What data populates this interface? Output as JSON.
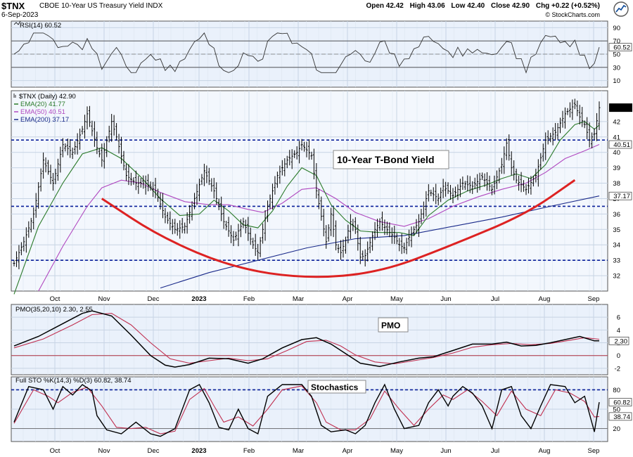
{
  "header": {
    "symbol": "$TNX",
    "description": "CBOE 10-Year US Treasury Yield  INDX",
    "date": "6-Sep-2023",
    "open_label": "Open 42.42",
    "high_label": "High 43.06",
    "low_label": "Low 42.40",
    "close_label": "Close 42.90",
    "chg_label": "Chg +0.22 (+0.52%)",
    "credit": "© StockCharts.com"
  },
  "colors": {
    "price_bars": "#000000",
    "ema20": "#2a7a2a",
    "ema50": "#b048c0",
    "ema200": "#1a2a8a",
    "rounded_bottom": "#dd2222",
    "pmo_signal": "#c03050",
    "stoch_d": "#c03050",
    "blue_dashed": "#0a1f9a",
    "grid": "#c7d4e4",
    "panel_bg": "#eaf1fb"
  },
  "chart_data": [
    {
      "panel": "rsi",
      "type": "line",
      "title": "RSI(14) 60.52",
      "ylim": [
        0,
        100
      ],
      "yticks": [
        10,
        30,
        50,
        70,
        90
      ],
      "reference_lines": [
        30,
        70
      ],
      "marker_label": "60.52",
      "last": 60.52
    },
    {
      "panel": "price",
      "type": "ohlc",
      "title": "$TNX (Daily) 42.90",
      "legend": [
        {
          "label": "EMA(20) 41.77",
          "color": "#2a7a2a"
        },
        {
          "label": "EMA(50) 40.51",
          "color": "#b048c0"
        },
        {
          "label": "EMA(200) 37.17",
          "color": "#1a2a8a"
        }
      ],
      "ylim": [
        31,
        44
      ],
      "yticks": [
        32,
        33,
        34,
        35,
        36,
        37,
        38,
        39,
        40,
        41,
        42
      ],
      "right_markers": [
        {
          "value": 42.9,
          "label": "42.90",
          "style": "black"
        },
        {
          "value": 40.51,
          "label": "40.51",
          "style": "outline"
        },
        {
          "value": 37.17,
          "label": "37.17",
          "style": "outline"
        }
      ],
      "horizontal_lines": [
        40.8,
        36.5,
        33.0
      ],
      "annotation": "10-Year T-Bond Yield",
      "x_months": [
        "Oct",
        "Nov",
        "Dec",
        "2023",
        "Feb",
        "Mar",
        "Apr",
        "May",
        "Jun",
        "Jul",
        "Aug",
        "Sep"
      ],
      "close_path": [
        [
          0,
          32.8
        ],
        [
          4,
          34.2
        ],
        [
          8,
          36.0
        ],
        [
          12,
          39.5
        ],
        [
          16,
          38.0
        ],
        [
          20,
          40.5
        ],
        [
          24,
          40.0
        ],
        [
          28,
          41.5
        ],
        [
          30,
          42.5
        ],
        [
          34,
          40.3
        ],
        [
          36,
          39.5
        ],
        [
          40,
          42.0
        ],
        [
          42,
          41.0
        ],
        [
          46,
          38.5
        ],
        [
          50,
          38.0
        ],
        [
          54,
          38.0
        ],
        [
          58,
          37.5
        ],
        [
          62,
          35.8
        ],
        [
          66,
          35.0
        ],
        [
          70,
          35.2
        ],
        [
          74,
          37.0
        ],
        [
          78,
          38.8
        ],
        [
          82,
          37.5
        ],
        [
          86,
          35.5
        ],
        [
          90,
          34.3
        ],
        [
          94,
          35.5
        ],
        [
          98,
          34.0
        ],
        [
          100,
          33.5
        ],
        [
          104,
          36.5
        ],
        [
          108,
          38.5
        ],
        [
          112,
          39.5
        ],
        [
          116,
          40.0
        ],
        [
          118,
          40.5
        ],
        [
          122,
          39.8
        ],
        [
          124,
          37.5
        ],
        [
          128,
          34.2
        ],
        [
          130,
          36.0
        ],
        [
          132,
          34.0
        ],
        [
          134,
          33.5
        ],
        [
          136,
          34.3
        ],
        [
          138,
          35.5
        ],
        [
          140,
          35.0
        ],
        [
          142,
          33.2
        ],
        [
          144,
          33.3
        ],
        [
          148,
          35.0
        ],
        [
          150,
          35.5
        ],
        [
          154,
          34.8
        ],
        [
          156,
          34.5
        ],
        [
          158,
          34.0
        ],
        [
          160,
          33.8
        ],
        [
          162,
          34.5
        ],
        [
          166,
          35.5
        ],
        [
          170,
          37.5
        ],
        [
          174,
          37.0
        ],
        [
          176,
          37.8
        ],
        [
          180,
          37.2
        ],
        [
          184,
          38.0
        ],
        [
          188,
          37.8
        ],
        [
          192,
          38.4
        ],
        [
          196,
          37.6
        ],
        [
          200,
          39.2
        ],
        [
          202,
          40.6
        ],
        [
          204,
          39.0
        ],
        [
          206,
          38.2
        ],
        [
          210,
          37.6
        ],
        [
          214,
          38.5
        ],
        [
          218,
          40.8
        ],
        [
          222,
          41.3
        ],
        [
          226,
          42.5
        ],
        [
          230,
          43.1
        ],
        [
          232,
          42.3
        ],
        [
          234,
          41.8
        ],
        [
          236,
          40.8
        ],
        [
          238,
          41.2
        ],
        [
          240,
          42.9
        ]
      ],
      "ema20_path": [
        [
          0,
          30.8
        ],
        [
          10,
          35.2
        ],
        [
          20,
          38.0
        ],
        [
          28,
          39.9
        ],
        [
          36,
          40.3
        ],
        [
          44,
          39.6
        ],
        [
          52,
          38.4
        ],
        [
          60,
          37.0
        ],
        [
          68,
          35.9
        ],
        [
          76,
          36.0
        ],
        [
          82,
          36.9
        ],
        [
          88,
          36.2
        ],
        [
          94,
          35.3
        ],
        [
          100,
          35.1
        ],
        [
          106,
          36.2
        ],
        [
          112,
          37.8
        ],
        [
          118,
          39.0
        ],
        [
          124,
          38.5
        ],
        [
          130,
          36.6
        ],
        [
          136,
          35.6
        ],
        [
          142,
          34.9
        ],
        [
          150,
          34.8
        ],
        [
          158,
          34.8
        ],
        [
          164,
          34.6
        ],
        [
          170,
          35.9
        ],
        [
          178,
          36.9
        ],
        [
          186,
          37.5
        ],
        [
          194,
          37.9
        ],
        [
          200,
          38.3
        ],
        [
          206,
          38.6
        ],
        [
          212,
          38.3
        ],
        [
          218,
          39.2
        ],
        [
          224,
          40.8
        ],
        [
          230,
          41.8
        ],
        [
          234,
          42.0
        ],
        [
          238,
          41.5
        ],
        [
          240,
          41.77
        ]
      ],
      "ema50_path": [
        [
          10,
          31.0
        ],
        [
          20,
          33.9
        ],
        [
          30,
          36.5
        ],
        [
          36,
          37.7
        ],
        [
          44,
          38.2
        ],
        [
          52,
          38.0
        ],
        [
          60,
          37.4
        ],
        [
          70,
          36.8
        ],
        [
          80,
          36.6
        ],
        [
          88,
          36.6
        ],
        [
          96,
          36.3
        ],
        [
          102,
          36.1
        ],
        [
          110,
          36.7
        ],
        [
          118,
          37.6
        ],
        [
          124,
          37.7
        ],
        [
          132,
          37.0
        ],
        [
          140,
          36.1
        ],
        [
          150,
          35.5
        ],
        [
          160,
          35.2
        ],
        [
          170,
          35.7
        ],
        [
          180,
          36.5
        ],
        [
          190,
          37.1
        ],
        [
          200,
          37.6
        ],
        [
          210,
          38.0
        ],
        [
          218,
          38.7
        ],
        [
          226,
          39.6
        ],
        [
          234,
          40.1
        ],
        [
          240,
          40.51
        ]
      ],
      "ema200_path": [
        [
          60,
          31.2
        ],
        [
          80,
          32.2
        ],
        [
          100,
          33.0
        ],
        [
          120,
          33.8
        ],
        [
          140,
          34.4
        ],
        [
          160,
          34.6
        ],
        [
          180,
          35.2
        ],
        [
          200,
          35.8
        ],
        [
          220,
          36.5
        ],
        [
          240,
          37.17
        ]
      ],
      "rounded_bottom_path": [
        [
          36,
          37.0
        ],
        [
          60,
          34.5
        ],
        [
          90,
          32.5
        ],
        [
          120,
          31.8
        ],
        [
          150,
          32.2
        ],
        [
          180,
          34.0
        ],
        [
          210,
          36.0
        ],
        [
          230,
          38.2
        ]
      ]
    },
    {
      "panel": "pmo",
      "type": "line",
      "title": "PMO(35,20,10) 2.30, 2.55",
      "annotation": "PMO",
      "ylim": [
        -3,
        8
      ],
      "yticks": [
        -2,
        0,
        2,
        4,
        6
      ],
      "zero_line": 0,
      "marker_label": "2.30",
      "pmo_path": [
        [
          0,
          1.5
        ],
        [
          10,
          3.0
        ],
        [
          20,
          5.0
        ],
        [
          28,
          6.6
        ],
        [
          32,
          7.0
        ],
        [
          40,
          6.2
        ],
        [
          48,
          3.2
        ],
        [
          56,
          0.0
        ],
        [
          62,
          -1.5
        ],
        [
          66,
          -1.8
        ],
        [
          72,
          -1.4
        ],
        [
          80,
          -0.4
        ],
        [
          88,
          -0.5
        ],
        [
          96,
          -1.2
        ],
        [
          102,
          -0.5
        ],
        [
          110,
          1.2
        ],
        [
          118,
          2.5
        ],
        [
          124,
          2.8
        ],
        [
          130,
          1.8
        ],
        [
          136,
          0.3
        ],
        [
          142,
          -1.2
        ],
        [
          150,
          -1.7
        ],
        [
          158,
          -1.0
        ],
        [
          166,
          -0.4
        ],
        [
          172,
          -0.2
        ],
        [
          180,
          0.8
        ],
        [
          188,
          1.8
        ],
        [
          196,
          1.8
        ],
        [
          202,
          2.1
        ],
        [
          208,
          1.5
        ],
        [
          214,
          1.6
        ],
        [
          220,
          2.0
        ],
        [
          226,
          2.5
        ],
        [
          232,
          3.0
        ],
        [
          238,
          2.3
        ],
        [
          240,
          2.3
        ]
      ],
      "signal_path": [
        [
          0,
          1.2
        ],
        [
          12,
          2.6
        ],
        [
          24,
          4.8
        ],
        [
          32,
          6.4
        ],
        [
          40,
          6.6
        ],
        [
          48,
          4.8
        ],
        [
          56,
          2.0
        ],
        [
          64,
          -0.5
        ],
        [
          72,
          -1.2
        ],
        [
          80,
          -0.8
        ],
        [
          88,
          -0.4
        ],
        [
          96,
          -0.8
        ],
        [
          104,
          -0.5
        ],
        [
          112,
          0.8
        ],
        [
          120,
          2.2
        ],
        [
          128,
          2.4
        ],
        [
          134,
          1.5
        ],
        [
          140,
          0.1
        ],
        [
          148,
          -1.0
        ],
        [
          156,
          -1.3
        ],
        [
          164,
          -0.8
        ],
        [
          172,
          -0.3
        ],
        [
          180,
          0.4
        ],
        [
          188,
          1.3
        ],
        [
          196,
          1.7
        ],
        [
          204,
          1.9
        ],
        [
          212,
          1.7
        ],
        [
          220,
          1.9
        ],
        [
          228,
          2.4
        ],
        [
          234,
          2.8
        ],
        [
          240,
          2.55
        ]
      ]
    },
    {
      "panel": "stochastic",
      "type": "line",
      "title": "Full STO %K(14,3) %D(3) 60.82, 38.74",
      "annotation": "Stochastics",
      "ylim": [
        0,
        100
      ],
      "yticks": [
        20,
        50,
        80
      ],
      "dashed_line": 80,
      "markers": [
        {
          "value": 60.82,
          "label": "60.82"
        },
        {
          "value": 38.74,
          "label": "38.74"
        }
      ],
      "k_path": [
        [
          0,
          30
        ],
        [
          6,
          85
        ],
        [
          12,
          80
        ],
        [
          16,
          50
        ],
        [
          20,
          85
        ],
        [
          24,
          72
        ],
        [
          28,
          88
        ],
        [
          32,
          78
        ],
        [
          34,
          40
        ],
        [
          38,
          18
        ],
        [
          44,
          12
        ],
        [
          50,
          30
        ],
        [
          56,
          12
        ],
        [
          60,
          8
        ],
        [
          66,
          20
        ],
        [
          72,
          80
        ],
        [
          76,
          88
        ],
        [
          80,
          60
        ],
        [
          84,
          22
        ],
        [
          88,
          18
        ],
        [
          92,
          50
        ],
        [
          96,
          20
        ],
        [
          100,
          12
        ],
        [
          104,
          70
        ],
        [
          110,
          88
        ],
        [
          118,
          88
        ],
        [
          122,
          70
        ],
        [
          126,
          25
        ],
        [
          130,
          15
        ],
        [
          136,
          18
        ],
        [
          140,
          12
        ],
        [
          144,
          25
        ],
        [
          148,
          60
        ],
        [
          152,
          88
        ],
        [
          156,
          50
        ],
        [
          160,
          20
        ],
        [
          166,
          25
        ],
        [
          170,
          60
        ],
        [
          174,
          80
        ],
        [
          178,
          55
        ],
        [
          180,
          70
        ],
        [
          184,
          85
        ],
        [
          188,
          75
        ],
        [
          192,
          55
        ],
        [
          196,
          20
        ],
        [
          200,
          80
        ],
        [
          204,
          85
        ],
        [
          208,
          40
        ],
        [
          212,
          20
        ],
        [
          216,
          55
        ],
        [
          220,
          88
        ],
        [
          226,
          85
        ],
        [
          230,
          60
        ],
        [
          234,
          70
        ],
        [
          238,
          15
        ],
        [
          240,
          60.82
        ]
      ],
      "d_path": [
        [
          0,
          28
        ],
        [
          8,
          80
        ],
        [
          14,
          70
        ],
        [
          18,
          60
        ],
        [
          24,
          76
        ],
        [
          30,
          84
        ],
        [
          36,
          55
        ],
        [
          42,
          22
        ],
        [
          48,
          20
        ],
        [
          54,
          22
        ],
        [
          60,
          12
        ],
        [
          66,
          16
        ],
        [
          72,
          65
        ],
        [
          78,
          82
        ],
        [
          82,
          55
        ],
        [
          86,
          30
        ],
        [
          92,
          38
        ],
        [
          98,
          24
        ],
        [
          104,
          50
        ],
        [
          110,
          80
        ],
        [
          118,
          86
        ],
        [
          124,
          60
        ],
        [
          128,
          30
        ],
        [
          134,
          18
        ],
        [
          140,
          18
        ],
        [
          146,
          35
        ],
        [
          152,
          78
        ],
        [
          158,
          50
        ],
        [
          164,
          25
        ],
        [
          170,
          50
        ],
        [
          176,
          72
        ],
        [
          180,
          65
        ],
        [
          186,
          80
        ],
        [
          192,
          62
        ],
        [
          198,
          40
        ],
        [
          204,
          78
        ],
        [
          210,
          50
        ],
        [
          216,
          40
        ],
        [
          222,
          80
        ],
        [
          228,
          75
        ],
        [
          234,
          62
        ],
        [
          238,
          38
        ],
        [
          240,
          38.74
        ]
      ]
    }
  ]
}
